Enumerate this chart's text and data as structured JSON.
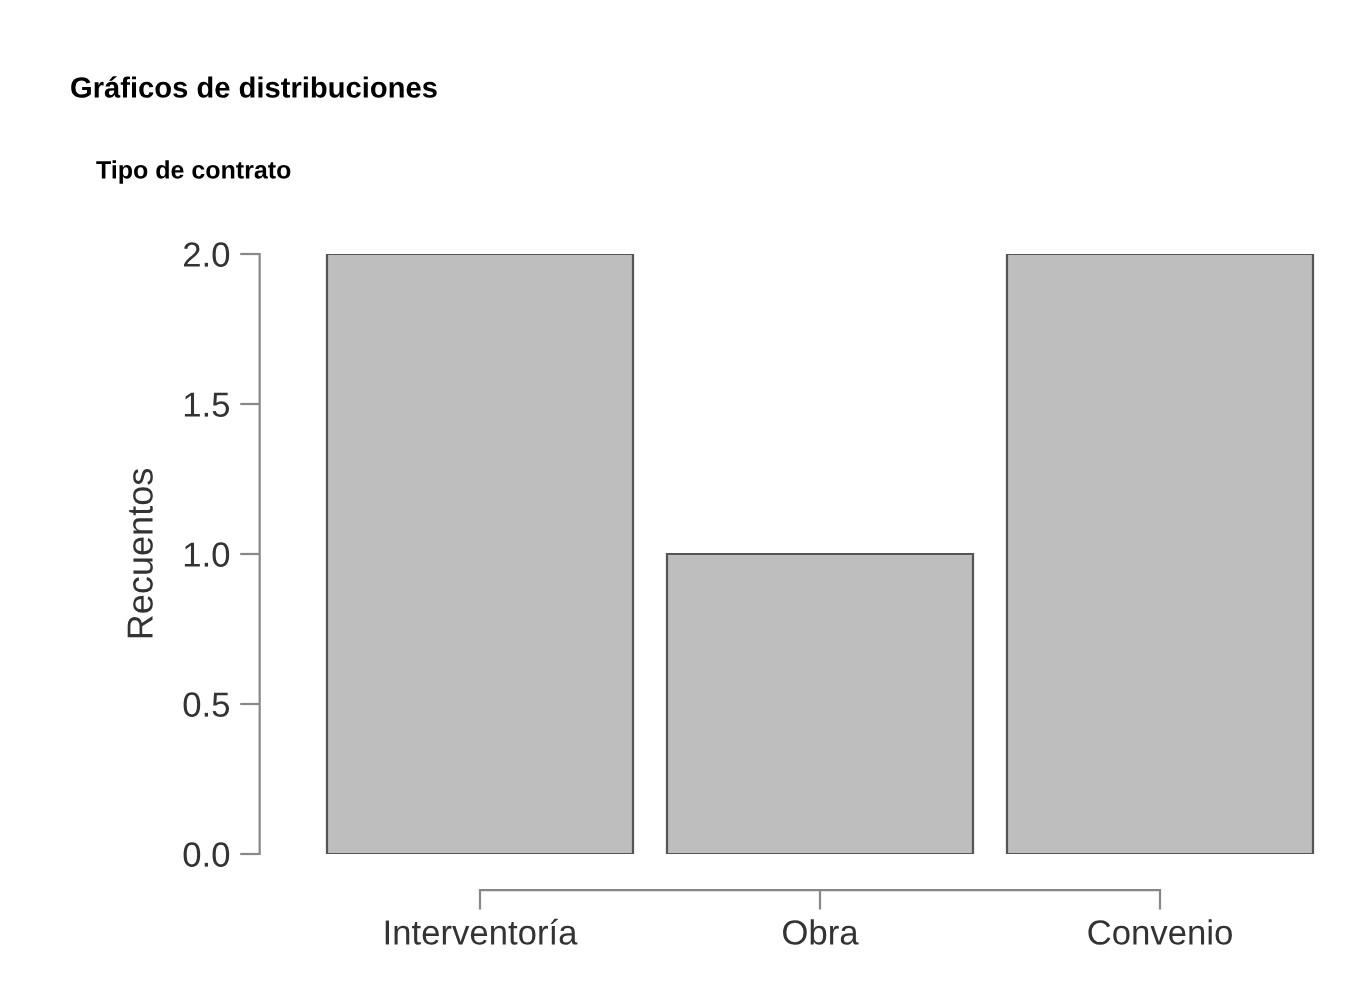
{
  "chart_data": {
    "type": "bar",
    "title": "Gráficos de distribuciones",
    "subtitle": "Tipo de contrato",
    "ylabel": "Recuentos",
    "categories": [
      "Interventoría",
      "Obra",
      "Convenio"
    ],
    "values": [
      2,
      1,
      2
    ],
    "color": "#bebebe",
    "ylim": [
      0,
      2
    ],
    "yticks": [
      {
        "value": 0,
        "label": "0.0"
      },
      0.5,
      {
        "value": 1,
        "label": "1.0"
      },
      1.5,
      {
        "value": 2,
        "label": "2.0"
      }
    ],
    "grid": false,
    "legend": false
  }
}
